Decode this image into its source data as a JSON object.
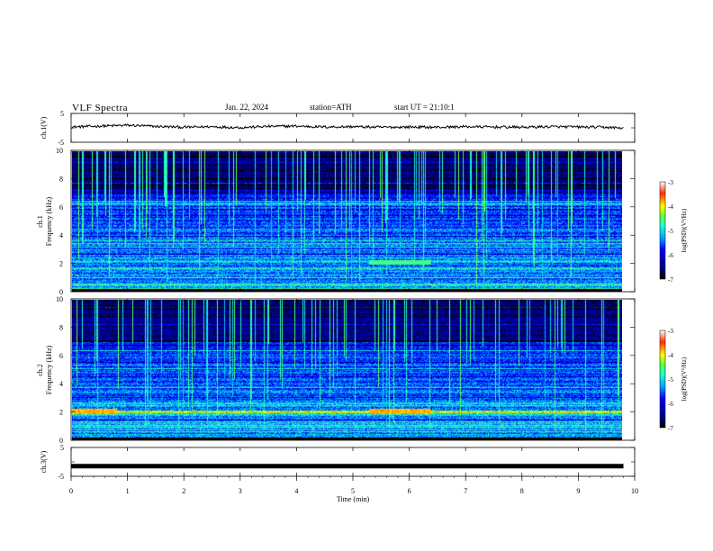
{
  "header": {
    "title": "VLF Spectra",
    "date": "Jan. 22, 2024",
    "station": "station=ATH",
    "start": "start UT = 21:10:1"
  },
  "chart_data": [
    {
      "type": "line",
      "panel": "ch1-waveform",
      "ylabel": "ch.1(V)",
      "yticks": [
        "5",
        "-5"
      ],
      "ylim": [
        -5,
        5
      ],
      "xlim": [
        0,
        10
      ],
      "series": [
        {
          "x": [
            0,
            0.5,
            1,
            1.5,
            2,
            2.5,
            3,
            3.5,
            4,
            4.5,
            5,
            5.5,
            6,
            6.5,
            7,
            7.5,
            8,
            8.5,
            9,
            9.5,
            9.8
          ],
          "values": [
            0.3,
            0.6,
            0.9,
            0.5,
            0.2,
            0.4,
            0.1,
            0.5,
            0.6,
            0.3,
            0.4,
            0.2,
            0.3,
            0.2,
            0.4,
            0.3,
            0.2,
            0.4,
            0.3,
            0.2,
            -0.1
          ]
        }
      ]
    },
    {
      "type": "heatmap",
      "panel": "ch1-spectrogram",
      "ylabel": "Frequency (kHz)",
      "channel_label": "ch.1",
      "yticks": [
        "0",
        "2",
        "4",
        "6",
        "8",
        "10"
      ],
      "ylim": [
        0,
        10
      ],
      "xlim": [
        0,
        9.8
      ],
      "colorbar": {
        "label": "log(PSD)(V²/Hz)",
        "ticks": [
          "-3",
          "-4",
          "-5",
          "-6",
          "-7"
        ],
        "range": [
          -7,
          -3
        ]
      },
      "features": [
        {
          "freq_khz": 2.1,
          "log_psd": -4.8,
          "note": "strong band"
        },
        {
          "freq_khz": 1.0,
          "log_psd": -5.2,
          "note": "band"
        },
        {
          "freq_khz": 0.5,
          "log_psd": -5.0,
          "note": "band"
        },
        {
          "freq_khz": 0.1,
          "log_psd": -7.0,
          "note": "dark floor line"
        }
      ]
    },
    {
      "type": "heatmap",
      "panel": "ch2-spectrogram",
      "ylabel": "Frequency (kHz)",
      "channel_label": "ch.2",
      "yticks": [
        "0",
        "2",
        "4",
        "6",
        "8",
        "10"
      ],
      "ylim": [
        0,
        10
      ],
      "xlim": [
        0,
        9.8
      ],
      "colorbar": {
        "label": "log(PSD)(V²/Hz)",
        "ticks": [
          "-3",
          "-4",
          "-5",
          "-6",
          "-7"
        ],
        "range": [
          -7,
          -3
        ]
      },
      "features": [
        {
          "freq_khz": 2.0,
          "log_psd": -3.9,
          "note": "hot band 0-0.8 min and 5.3-6.4 min"
        },
        {
          "freq_khz": 1.8,
          "log_psd": -4.9,
          "note": "band"
        },
        {
          "freq_khz": 0.1,
          "log_psd": -7.0,
          "note": "dark floor line"
        }
      ]
    },
    {
      "type": "line",
      "panel": "ch3-waveform",
      "ylabel": "ch.3(V)",
      "yticks": [
        "5",
        "-5"
      ],
      "ylim": [
        -5,
        5
      ],
      "xlim": [
        0,
        10
      ],
      "series": [
        {
          "x": [
            0,
            9.8
          ],
          "values": [
            -1.5,
            -1.5
          ]
        }
      ]
    }
  ],
  "x_axis": {
    "label": "Time (min)",
    "ticks": [
      "0",
      "1",
      "2",
      "3",
      "4",
      "5",
      "6",
      "7",
      "8",
      "9",
      "10"
    ]
  }
}
